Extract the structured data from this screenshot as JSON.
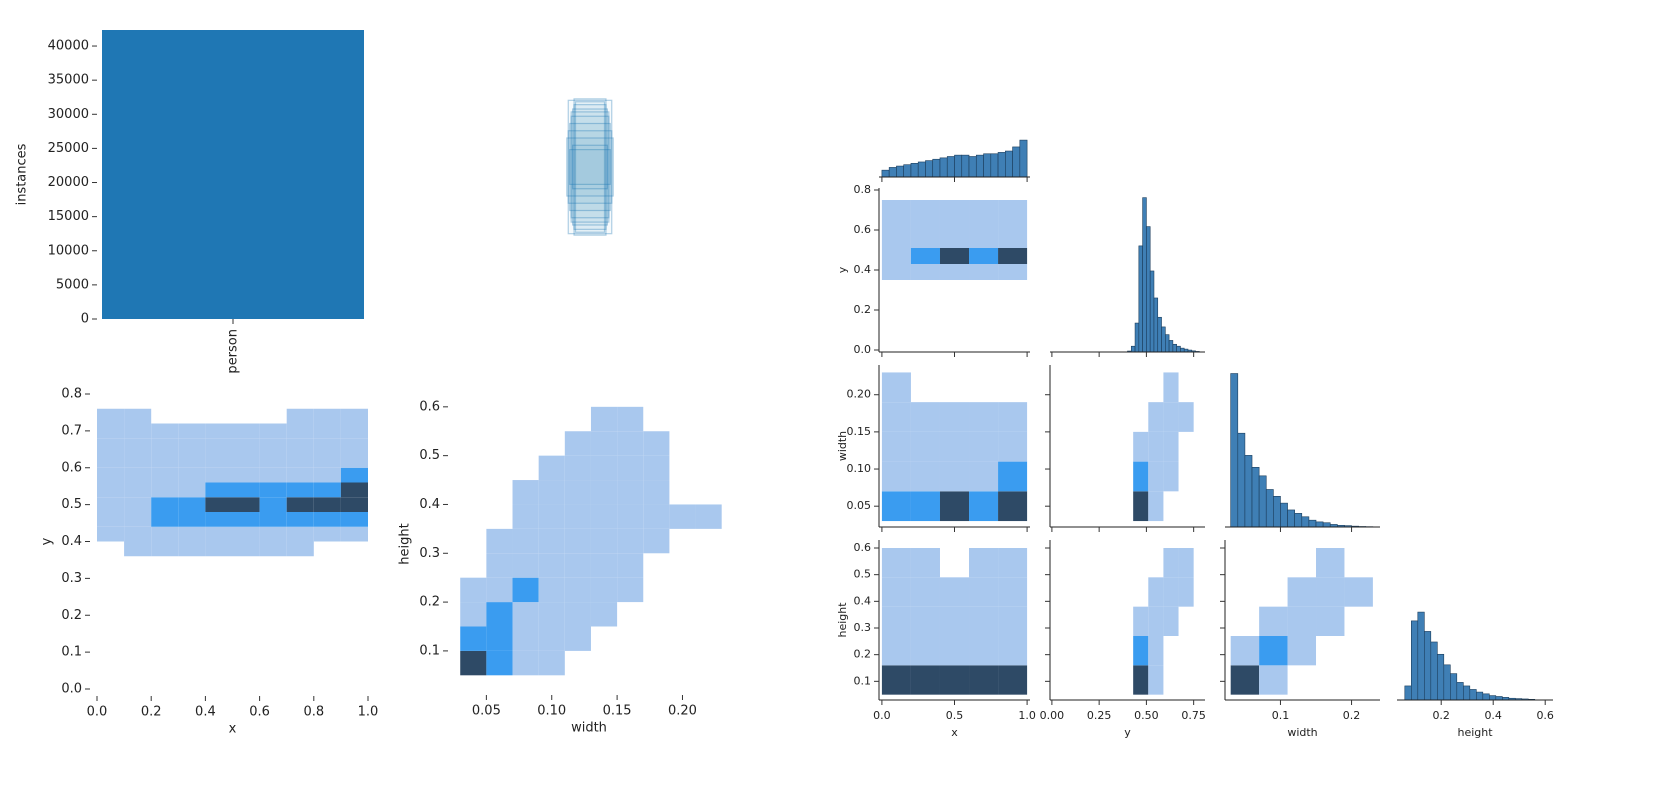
{
  "chart_data": [
    {
      "type": "bar",
      "ylabel": "instances",
      "categories": [
        "person"
      ],
      "values": [
        42350
      ],
      "color": "#1f77b4",
      "ylim": [
        0,
        42350
      ],
      "yticks": [
        0,
        5000,
        10000,
        15000,
        20000,
        25000,
        30000,
        35000,
        40000
      ]
    },
    {
      "type": "boxes",
      "color": "#1f77b4",
      "widths": [
        0.1,
        0.11,
        0.12,
        0.13,
        0.14,
        0.15,
        0.16,
        0.12,
        0.14,
        0.11,
        0.13,
        0.15
      ],
      "heights": [
        0.45,
        0.47,
        0.4,
        0.35,
        0.3,
        0.25,
        0.2,
        0.15,
        0.12,
        0.43,
        0.38,
        0.46
      ]
    },
    {
      "type": "heatmap",
      "xlabel": "x",
      "ylabel": "y",
      "xlim": [
        0,
        1
      ],
      "ylim": [
        0,
        0.8
      ],
      "xticks": [
        {
          "value": 0,
          "label": "0.0"
        },
        0.2,
        0.4,
        0.6,
        0.8,
        {
          "value": 1,
          "label": "1.0"
        }
      ],
      "yticks": [
        {
          "value": 0,
          "label": "0.0"
        },
        0.1,
        0.2,
        0.3,
        0.4,
        0.5,
        0.6,
        0.7,
        0.8
      ],
      "xbins": [
        0,
        0.1,
        0.2,
        0.3,
        0.4,
        0.5,
        0.6,
        0.7,
        0.8,
        0.9,
        1.0
      ],
      "ybins": [
        0.36,
        0.4,
        0.44,
        0.48,
        0.52,
        0.56,
        0.6,
        0.64,
        0.68,
        0.72,
        0.76
      ],
      "levels": [
        [
          0,
          1,
          1,
          1,
          1,
          1,
          1,
          1,
          0,
          0
        ],
        [
          1,
          1,
          1,
          1,
          1,
          1,
          1,
          1,
          1,
          1
        ],
        [
          1,
          1,
          2,
          2,
          2,
          2,
          2,
          2,
          2,
          2
        ],
        [
          1,
          1,
          2,
          2,
          3,
          3,
          2,
          3,
          3,
          3
        ],
        [
          1,
          1,
          1,
          1,
          2,
          2,
          2,
          2,
          2,
          3
        ],
        [
          1,
          1,
          1,
          1,
          1,
          1,
          1,
          1,
          1,
          2
        ],
        [
          1,
          1,
          1,
          1,
          1,
          1,
          1,
          1,
          1,
          1
        ],
        [
          1,
          1,
          1,
          1,
          1,
          1,
          1,
          1,
          1,
          1
        ],
        [
          1,
          1,
          1,
          1,
          1,
          1,
          1,
          1,
          1,
          1
        ],
        [
          1,
          1,
          0,
          0,
          0,
          0,
          0,
          1,
          1,
          1
        ]
      ],
      "colors": [
        "#a9c8ee",
        "#3a9cf0",
        "#2e4a66"
      ]
    },
    {
      "type": "heatmap",
      "xlabel": "width",
      "ylabel": "height",
      "xlim": [
        0.026,
        0.231
      ],
      "ylim": [
        0.024,
        0.614
      ],
      "xticks": [
        0.05,
        {
          "value": 0.1,
          "label": "0.10"
        },
        0.15,
        {
          "value": 0.2,
          "label": "0.20"
        }
      ],
      "yticks": [
        0.1,
        0.2,
        0.3,
        0.4,
        0.5,
        0.6
      ],
      "xbins": [
        0.03,
        0.05,
        0.07,
        0.09,
        0.11,
        0.13,
        0.15,
        0.17,
        0.19,
        0.21,
        0.23
      ],
      "ybins": [
        0.05,
        0.1,
        0.15,
        0.2,
        0.25,
        0.3,
        0.35,
        0.4,
        0.45,
        0.5,
        0.55,
        0.6
      ],
      "levels": [
        [
          3,
          2,
          1,
          1,
          0,
          0,
          0,
          0,
          0,
          0
        ],
        [
          2,
          2,
          1,
          1,
          1,
          0,
          0,
          0,
          0,
          0
        ],
        [
          1,
          2,
          1,
          1,
          1,
          1,
          0,
          0,
          0,
          0
        ],
        [
          1,
          1,
          2,
          1,
          1,
          1,
          1,
          0,
          0,
          0
        ],
        [
          0,
          1,
          1,
          1,
          1,
          1,
          1,
          0,
          0,
          0
        ],
        [
          0,
          1,
          1,
          1,
          1,
          1,
          1,
          1,
          0,
          0
        ],
        [
          0,
          0,
          1,
          1,
          1,
          1,
          1,
          1,
          1,
          1
        ],
        [
          0,
          0,
          1,
          1,
          1,
          1,
          1,
          1,
          0,
          0
        ],
        [
          0,
          0,
          0,
          1,
          1,
          1,
          1,
          1,
          0,
          0
        ],
        [
          0,
          0,
          0,
          0,
          1,
          1,
          1,
          1,
          0,
          0
        ],
        [
          0,
          0,
          0,
          0,
          0,
          1,
          1,
          0,
          0,
          0
        ]
      ],
      "colors": [
        "#a9c8ee",
        "#3a9cf0",
        "#2e4a66"
      ]
    },
    {
      "type": "pairplot",
      "hist_color": "#3f7fb5",
      "colors": [
        "#a9c8ee",
        "#3a9cf0",
        "#2e4a66"
      ],
      "variables": [
        {
          "name": "x",
          "lim": [
            -0.02,
            1.02
          ],
          "col_ticks": [
            {
              "value": 0,
              "label": "0.0"
            },
            0.5,
            {
              "value": 1,
              "label": "1.0"
            }
          ],
          "bins": [
            0,
            0.05,
            0.1,
            0.15,
            0.2,
            0.25,
            0.3,
            0.35,
            0.4,
            0.45,
            0.5,
            0.55,
            0.6,
            0.65,
            0.7,
            0.75,
            0.8,
            0.85,
            0.9,
            0.95,
            1.0
          ],
          "counts": [
            500,
            700,
            800,
            900,
            1000,
            1100,
            1200,
            1300,
            1400,
            1500,
            1600,
            1600,
            1500,
            1600,
            1700,
            1700,
            1800,
            1900,
            2200,
            2700
          ],
          "count_lim": 12000,
          "cell_bins": [
            0,
            0.2,
            0.4,
            0.6,
            0.8,
            1.0
          ]
        },
        {
          "name": "y",
          "lim": [
            -0.01,
            0.81
          ],
          "col_ticks": [
            {
              "value": 0,
              "label": "0.00"
            },
            0.25,
            {
              "value": 0.5,
              "label": "0.50"
            },
            0.75
          ],
          "row_ticks": [
            {
              "value": 0,
              "label": "0.0"
            },
            0.2,
            0.4,
            0.6,
            0.8
          ],
          "bins": [
            0.4,
            0.42,
            0.44,
            0.46,
            0.48,
            0.5,
            0.52,
            0.54,
            0.56,
            0.58,
            0.6,
            0.62,
            0.64,
            0.66,
            0.68,
            0.7,
            0.72,
            0.74,
            0.76,
            0.78,
            0.8
          ],
          "counts": [
            50,
            300,
            1500,
            5500,
            8000,
            6500,
            4200,
            2800,
            1800,
            1300,
            900,
            600,
            400,
            300,
            200,
            150,
            100,
            60,
            30,
            10
          ],
          "count_lim": 8500,
          "cell_bins": [
            0.35,
            0.43,
            0.51,
            0.59,
            0.67,
            0.75
          ]
        },
        {
          "name": "width",
          "lim": [
            0.022,
            0.24
          ],
          "col_ticks": [
            0.1,
            0.2
          ],
          "row_ticks": [
            0.05,
            {
              "value": 0.1,
              "label": "0.10"
            },
            0.15,
            {
              "value": 0.2,
              "label": "0.20"
            }
          ],
          "bins": [
            0.03,
            0.04,
            0.05,
            0.06,
            0.07,
            0.08,
            0.09,
            0.1,
            0.11,
            0.12,
            0.13,
            0.14,
            0.15,
            0.16,
            0.17,
            0.18,
            0.19,
            0.2,
            0.21,
            0.22,
            0.23
          ],
          "counts": [
            9000,
            5500,
            4200,
            3500,
            3000,
            2200,
            1800,
            1400,
            1000,
            800,
            600,
            400,
            300,
            250,
            150,
            100,
            80,
            50,
            30,
            20
          ],
          "count_lim": 9500,
          "cell_bins": [
            0.03,
            0.07,
            0.11,
            0.15,
            0.19,
            0.23
          ]
        },
        {
          "name": "height",
          "lim": [
            0.03,
            0.63
          ],
          "col_ticks": [
            0.2,
            0.4,
            0.6
          ],
          "row_ticks": [
            0.1,
            0.2,
            0.3,
            0.4,
            0.5,
            0.6
          ],
          "bins": [
            0.06,
            0.085,
            0.11,
            0.135,
            0.16,
            0.185,
            0.21,
            0.235,
            0.26,
            0.285,
            0.31,
            0.335,
            0.36,
            0.385,
            0.41,
            0.435,
            0.46,
            0.485,
            0.51,
            0.535,
            0.56
          ],
          "counts": [
            800,
            4500,
            5000,
            3900,
            3300,
            2600,
            2000,
            1500,
            1000,
            800,
            600,
            450,
            350,
            250,
            200,
            150,
            100,
            80,
            60,
            40
          ],
          "count_lim": 9100,
          "cell_bins": [
            0.05,
            0.16,
            0.27,
            0.38,
            0.49,
            0.6
          ]
        }
      ],
      "pairs": [
        {
          "levels": [
            [
              1,
              1,
              1,
              1,
              1
            ],
            [
              1,
              2,
              3,
              2,
              3
            ],
            [
              1,
              1,
              1,
              1,
              1
            ],
            [
              1,
              1,
              1,
              1,
              1
            ],
            [
              1,
              1,
              1,
              1,
              1
            ]
          ]
        },
        {
          "levels": [
            [
              2,
              2,
              3,
              2,
              3
            ],
            [
              1,
              1,
              1,
              1,
              2
            ],
            [
              1,
              1,
              1,
              1,
              1
            ],
            [
              1,
              1,
              1,
              1,
              1
            ],
            [
              1,
              0,
              0,
              0,
              0
            ]
          ]
        },
        {
          "levels": [
            [
              0,
              3,
              1,
              0,
              0
            ],
            [
              0,
              2,
              1,
              1,
              0
            ],
            [
              0,
              1,
              1,
              1,
              0
            ],
            [
              0,
              0,
              1,
              1,
              1
            ],
            [
              0,
              0,
              0,
              1,
              0
            ]
          ]
        },
        {
          "levels": [
            [
              3,
              3,
              3,
              3,
              3
            ],
            [
              1,
              1,
              1,
              1,
              1
            ],
            [
              1,
              1,
              1,
              1,
              1
            ],
            [
              1,
              1,
              1,
              1,
              1
            ],
            [
              1,
              1,
              0,
              1,
              1
            ]
          ]
        },
        {
          "levels": [
            [
              0,
              3,
              1,
              0,
              0
            ],
            [
              0,
              2,
              1,
              0,
              0
            ],
            [
              0,
              1,
              1,
              1,
              0
            ],
            [
              0,
              0,
              1,
              1,
              1
            ],
            [
              0,
              0,
              0,
              1,
              1
            ]
          ]
        },
        {
          "levels": [
            [
              3,
              1,
              0,
              0,
              0
            ],
            [
              1,
              2,
              1,
              0,
              0
            ],
            [
              0,
              1,
              1,
              1,
              0
            ],
            [
              0,
              0,
              1,
              1,
              1
            ],
            [
              0,
              0,
              0,
              1,
              0
            ]
          ]
        }
      ]
    }
  ]
}
